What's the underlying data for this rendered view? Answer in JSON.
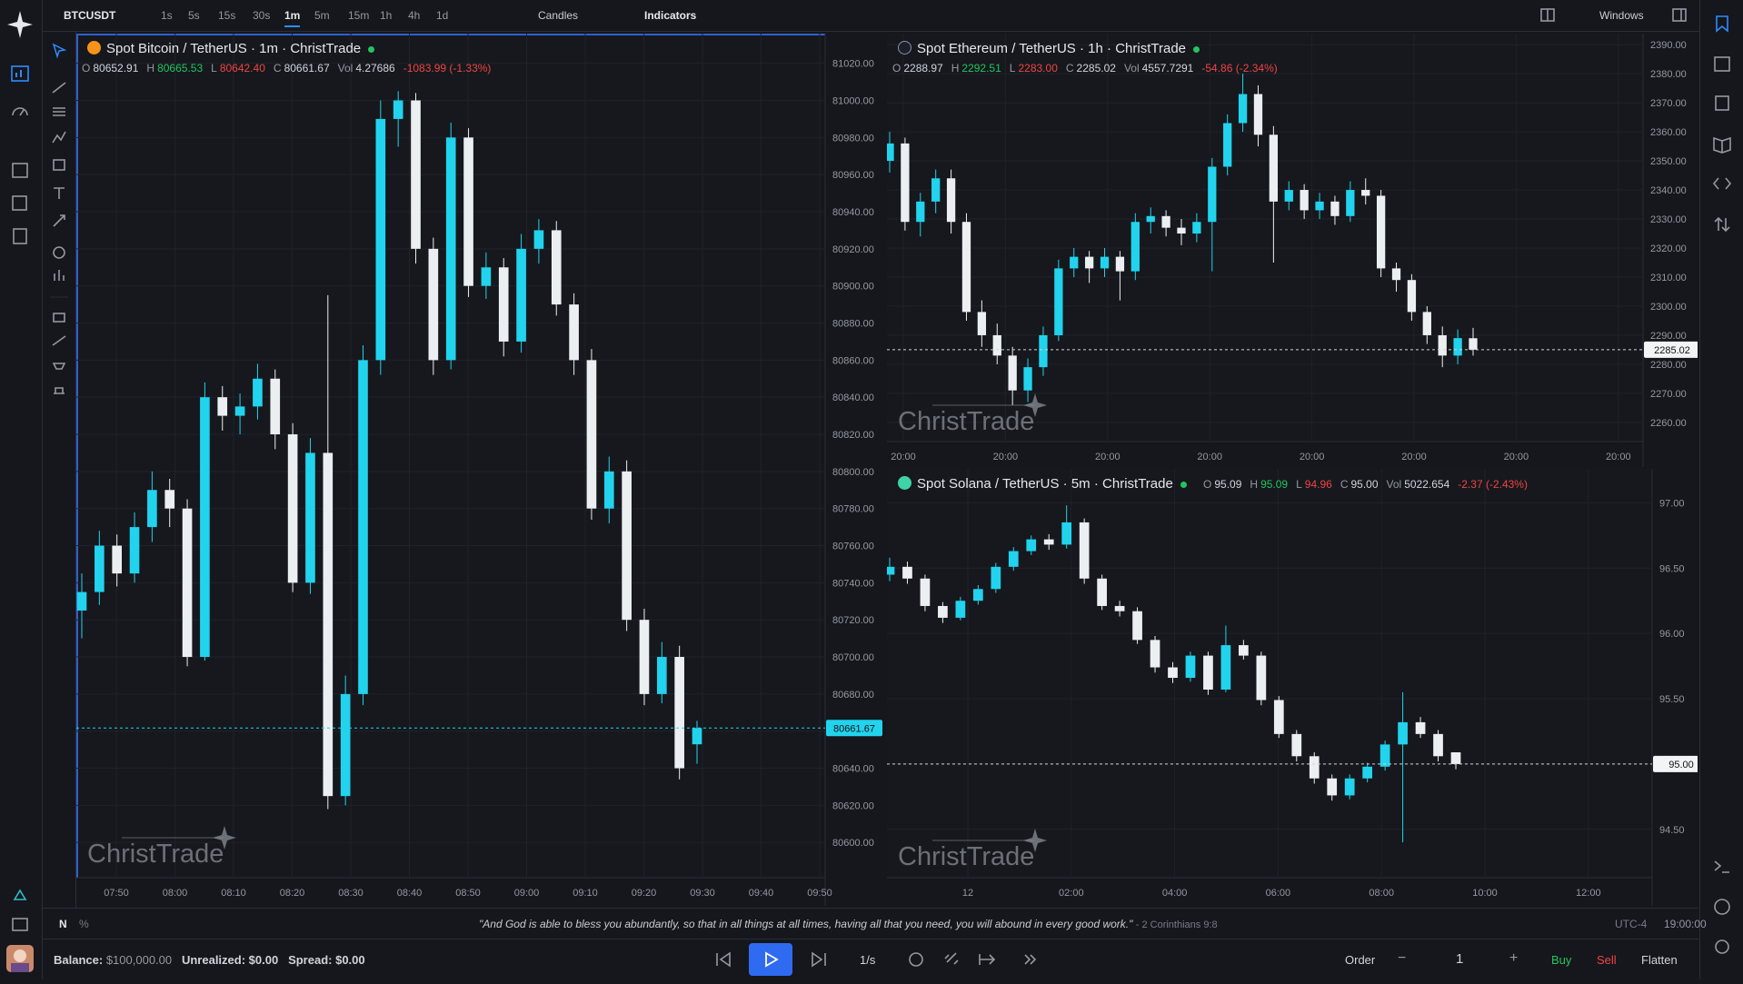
{
  "toolbar": {
    "symbol": "BTCUSDT",
    "timeframes": [
      "1s",
      "5s",
      "15s",
      "30s",
      "1m",
      "5m",
      "15m",
      "1h",
      "4h",
      "1d"
    ],
    "chart_style": "Candles",
    "indicators": "Indicators",
    "windows": "Windows"
  },
  "charts": [
    {
      "type": "candlestick",
      "title": "Spot Bitcoin / TetherUS",
      "interval": "1m",
      "source": "ChristTrade",
      "ohlc": [
        {
          "label": "O",
          "value": "80652.91"
        },
        {
          "label": "H",
          "value": "80665.53"
        },
        {
          "label": "L",
          "value": "80642.40"
        },
        {
          "label": "C",
          "value": "80661.67"
        },
        {
          "label": "Vol",
          "value": "4.27686"
        }
      ],
      "change": "-1083.99 (-1.33%)",
      "watermark": "ChristTrade",
      "last_price": "80661.67",
      "up_color": "#22d3ee",
      "down_color": "#eceff1",
      "ylim": [
        80581,
        81036
      ],
      "yticks": [
        {
          "value": 80600,
          "label": "80600.00"
        },
        {
          "value": 80620,
          "label": "80620.00"
        },
        {
          "value": 80640,
          "label": "80640.00"
        },
        {
          "value": 80660,
          "label": "80660.00"
        },
        {
          "value": 80680,
          "label": "80680.00"
        },
        {
          "value": 80700,
          "label": "80700.00"
        },
        {
          "value": 80720,
          "label": "80720.00"
        },
        {
          "value": 80740,
          "label": "80740.00"
        },
        {
          "value": 80760,
          "label": "80760.00"
        },
        {
          "value": 80780,
          "label": "80780.00"
        },
        {
          "value": 80800,
          "label": "80800.00"
        },
        {
          "value": 80820,
          "label": "80820.00"
        },
        {
          "value": 80840,
          "label": "80840.00"
        },
        {
          "value": 80860,
          "label": "80860.00"
        },
        {
          "value": 80880,
          "label": "80880.00"
        },
        {
          "value": 80900,
          "label": "80900.00"
        },
        {
          "value": 80920,
          "label": "80920.00"
        },
        {
          "value": 80940,
          "label": "80940.00"
        },
        {
          "value": 80960,
          "label": "80960.00"
        },
        {
          "value": 80980,
          "label": "80980.00"
        },
        {
          "value": 81000,
          "label": "81000.00"
        },
        {
          "value": 81020,
          "label": "81020.00"
        }
      ],
      "time_labels": [
        "07:50",
        "08:00",
        "08:10",
        "08:20",
        "08:30",
        "08:40",
        "08:50",
        "09:00",
        "09:10",
        "09:20",
        "09:30",
        "09:40",
        "09:50"
      ],
      "candles": [
        [
          80725,
          80745,
          80710,
          80735
        ],
        [
          80735,
          80768,
          80728,
          80760
        ],
        [
          80760,
          80766,
          80738,
          80745
        ],
        [
          80745,
          80778,
          80740,
          80770
        ],
        [
          80770,
          80800,
          80762,
          80790
        ],
        [
          80790,
          80796,
          80770,
          80780
        ],
        [
          80780,
          80785,
          80695,
          80700
        ],
        [
          80700,
          80848,
          80698,
          80840
        ],
        [
          80840,
          80846,
          80822,
          80830
        ],
        [
          80830,
          80842,
          80820,
          80835
        ],
        [
          80835,
          80858,
          80828,
          80850
        ],
        [
          80850,
          80855,
          80812,
          80820
        ],
        [
          80820,
          80826,
          80735,
          80740
        ],
        [
          80740,
          80818,
          80734,
          80810
        ],
        [
          80810,
          80895,
          80618,
          80625
        ],
        [
          80625,
          80690,
          80620,
          80680
        ],
        [
          80680,
          80868,
          80674,
          80860
        ],
        [
          80860,
          81000,
          80852,
          80990
        ],
        [
          80990,
          81005,
          80975,
          81000
        ],
        [
          81000,
          81004,
          80912,
          80920
        ],
        [
          80920,
          80926,
          80852,
          80860
        ],
        [
          80860,
          80988,
          80855,
          80980
        ],
        [
          80980,
          80985,
          80894,
          80900
        ],
        [
          80900,
          80918,
          80893,
          80910
        ],
        [
          80910,
          80915,
          80862,
          80870
        ],
        [
          80870,
          80928,
          80864,
          80920
        ],
        [
          80920,
          80936,
          80912,
          80930
        ],
        [
          80930,
          80935,
          80884,
          80890
        ],
        [
          80890,
          80896,
          80852,
          80860
        ],
        [
          80860,
          80866,
          80774,
          80780
        ],
        [
          80780,
          80808,
          80772,
          80800
        ],
        [
          80800,
          80806,
          80714,
          80720
        ],
        [
          80720,
          80726,
          80674,
          80680
        ],
        [
          80680,
          80708,
          80675,
          80700
        ],
        [
          80700,
          80706,
          80634,
          80640
        ],
        [
          80652.91,
          80665.53,
          80642.4,
          80661.67
        ]
      ]
    },
    {
      "type": "candlestick",
      "title": "Spot Ethereum / TetherUS",
      "interval": "1h",
      "source": "ChristTrade",
      "ohlc": [
        {
          "label": "O",
          "value": "2288.97"
        },
        {
          "label": "H",
          "value": "2292.51"
        },
        {
          "label": "L",
          "value": "2283.00"
        },
        {
          "label": "C",
          "value": "2285.02"
        },
        {
          "label": "Vol",
          "value": "4557.7291"
        }
      ],
      "change": "-54.86 (-2.34%)",
      "watermark": "ChristTrade",
      "last_price": "2285.02",
      "up_color": "#22d3ee",
      "down_color": "#eceff1",
      "ylim": [
        2253.4,
        2393.8
      ],
      "yticks": [
        {
          "value": 2260,
          "label": "2260.00"
        },
        {
          "value": 2270,
          "label": "2270.00"
        },
        {
          "value": 2280,
          "label": "2280.00"
        },
        {
          "value": 2290,
          "label": "2290.00"
        },
        {
          "value": 2300,
          "label": "2300.00"
        },
        {
          "value": 2310,
          "label": "2310.00"
        },
        {
          "value": 2320,
          "label": "2320.00"
        },
        {
          "value": 2330,
          "label": "2330.00"
        },
        {
          "value": 2340,
          "label": "2340.00"
        },
        {
          "value": 2350,
          "label": "2350.00"
        },
        {
          "value": 2360,
          "label": "2360.00"
        },
        {
          "value": 2370,
          "label": "2370.00"
        },
        {
          "value": 2380,
          "label": "2380.00"
        },
        {
          "value": 2390,
          "label": "2390.00"
        }
      ],
      "time_labels": [
        "20:00",
        "20:00",
        "20:00",
        "20:00",
        "20:00",
        "20:00",
        "20:00",
        "20:00"
      ],
      "candles": [
        [
          2350,
          2360,
          2346,
          2356
        ],
        [
          2356,
          2358,
          2326,
          2329
        ],
        [
          2329,
          2339,
          2324,
          2336
        ],
        [
          2336,
          2347,
          2332,
          2344
        ],
        [
          2344,
          2347,
          2325,
          2329
        ],
        [
          2329,
          2332,
          2295,
          2298
        ],
        [
          2298,
          2302,
          2286,
          2290
        ],
        [
          2290,
          2294,
          2280,
          2283
        ],
        [
          2283,
          2286,
          2266,
          2271
        ],
        [
          2271,
          2282,
          2267,
          2279
        ],
        [
          2279,
          2293,
          2276,
          2290
        ],
        [
          2290,
          2316,
          2288,
          2313
        ],
        [
          2313,
          2320,
          2310,
          2317
        ],
        [
          2317,
          2319,
          2308,
          2313
        ],
        [
          2313,
          2320,
          2310,
          2317
        ],
        [
          2317,
          2319,
          2302,
          2312
        ],
        [
          2312,
          2332,
          2309,
          2329
        ],
        [
          2329,
          2334,
          2325,
          2331
        ],
        [
          2331,
          2333,
          2324,
          2327
        ],
        [
          2327,
          2330,
          2321,
          2325
        ],
        [
          2325,
          2332,
          2322,
          2329
        ],
        [
          2329,
          2351,
          2312,
          2348
        ],
        [
          2348,
          2366,
          2345,
          2363
        ],
        [
          2363,
          2380,
          2360,
          2373
        ],
        [
          2373,
          2376,
          2355,
          2359
        ],
        [
          2359,
          2362,
          2315,
          2336
        ],
        [
          2336,
          2343,
          2333,
          2340
        ],
        [
          2340,
          2342,
          2330,
          2333
        ],
        [
          2333,
          2339,
          2330,
          2336
        ],
        [
          2336,
          2338,
          2328,
          2331
        ],
        [
          2331,
          2343,
          2329,
          2340
        ],
        [
          2340,
          2344,
          2335,
          2338
        ],
        [
          2338,
          2340,
          2310,
          2313
        ],
        [
          2313,
          2315,
          2305,
          2309
        ],
        [
          2309,
          2311,
          2295,
          2298
        ],
        [
          2298,
          2300,
          2287,
          2290
        ],
        [
          2290,
          2293,
          2279,
          2283
        ],
        [
          2283,
          2292,
          2280,
          2289
        ],
        [
          2288.97,
          2292.51,
          2283.0,
          2285.02
        ]
      ]
    },
    {
      "type": "candlestick",
      "title": "Spot Solana / TetherUS",
      "interval": "5m",
      "source": "ChristTrade",
      "ohlc": [
        {
          "label": "O",
          "value": "95.09"
        },
        {
          "label": "H",
          "value": "95.09"
        },
        {
          "label": "L",
          "value": "94.96"
        },
        {
          "label": "C",
          "value": "95.00"
        },
        {
          "label": "Vol",
          "value": "5022.654"
        }
      ],
      "change": "-2.37 (-2.43%)",
      "watermark": "ChristTrade",
      "last_price": "95.00",
      "up_color": "#22d3ee",
      "down_color": "#eceff1",
      "ylim": [
        94.13,
        97.26
      ],
      "yticks": [
        {
          "value": 94.5,
          "label": "94.50"
        },
        {
          "value": 95,
          "label": "95.00"
        },
        {
          "value": 95.5,
          "label": "95.50"
        },
        {
          "value": 96,
          "label": "96.00"
        },
        {
          "value": 96.5,
          "label": "96.50"
        },
        {
          "value": 97,
          "label": "97.00"
        }
      ],
      "time_labels": [
        "12",
        "02:00",
        "04:00",
        "06:00",
        "08:00",
        "10:00",
        "12:00"
      ],
      "candles": [
        [
          96.45,
          96.58,
          96.4,
          96.51
        ],
        [
          96.51,
          96.55,
          96.38,
          96.42
        ],
        [
          96.42,
          96.45,
          96.17,
          96.21
        ],
        [
          96.21,
          96.24,
          96.08,
          96.12
        ],
        [
          96.12,
          96.28,
          96.1,
          96.25
        ],
        [
          96.25,
          96.37,
          96.22,
          96.34
        ],
        [
          96.34,
          96.54,
          96.31,
          96.51
        ],
        [
          96.51,
          96.66,
          96.48,
          96.63
        ],
        [
          96.63,
          96.75,
          96.6,
          96.72
        ],
        [
          96.72,
          96.76,
          96.64,
          96.68
        ],
        [
          96.68,
          96.98,
          96.65,
          96.85
        ],
        [
          96.85,
          96.88,
          96.38,
          96.42
        ],
        [
          96.42,
          96.45,
          96.18,
          96.21
        ],
        [
          96.21,
          96.25,
          96.13,
          96.17
        ],
        [
          96.17,
          96.2,
          95.92,
          95.95
        ],
        [
          95.95,
          95.98,
          95.7,
          95.74
        ],
        [
          95.74,
          95.78,
          95.62,
          95.66
        ],
        [
          95.66,
          95.86,
          95.63,
          95.83
        ],
        [
          95.83,
          95.86,
          95.53,
          95.57
        ],
        [
          95.57,
          96.06,
          95.55,
          95.91
        ],
        [
          95.91,
          95.95,
          95.8,
          95.83
        ],
        [
          95.83,
          95.86,
          95.45,
          95.49
        ],
        [
          95.49,
          95.52,
          95.2,
          95.23
        ],
        [
          95.23,
          95.26,
          95.02,
          95.06
        ],
        [
          95.06,
          95.09,
          94.85,
          94.89
        ],
        [
          94.89,
          94.92,
          94.72,
          94.76
        ],
        [
          94.76,
          94.92,
          94.73,
          94.89
        ],
        [
          94.89,
          95.01,
          94.86,
          94.98
        ],
        [
          94.98,
          95.18,
          94.95,
          95.15
        ],
        [
          95.15,
          95.55,
          94.4,
          95.32
        ],
        [
          95.32,
          95.36,
          95.2,
          95.23
        ],
        [
          95.23,
          95.26,
          95.02,
          95.06
        ],
        [
          95.09,
          95.09,
          94.96,
          95.0
        ]
      ]
    }
  ],
  "status": {
    "mode": "N",
    "percent": "%",
    "quote": "\"And God is able to bless you abundantly, so that in all things at all times, having all that you need, you will abound in every good work.\"",
    "reference": "- 2 Corinthians 9:8",
    "timezone": "UTC-4",
    "clock": "19:00:00"
  },
  "account": {
    "balance_label": "Balance:",
    "balance": "$100,000.00",
    "unrealized_label": "Unrealized:",
    "unrealized": "$0.00",
    "spread_label": "Spread:",
    "spread": "$0.00"
  },
  "controls": {
    "speed": "1/s",
    "order": "Order",
    "quantity": "1",
    "buy": "Buy",
    "sell": "Sell",
    "flatten": "Flatten"
  }
}
